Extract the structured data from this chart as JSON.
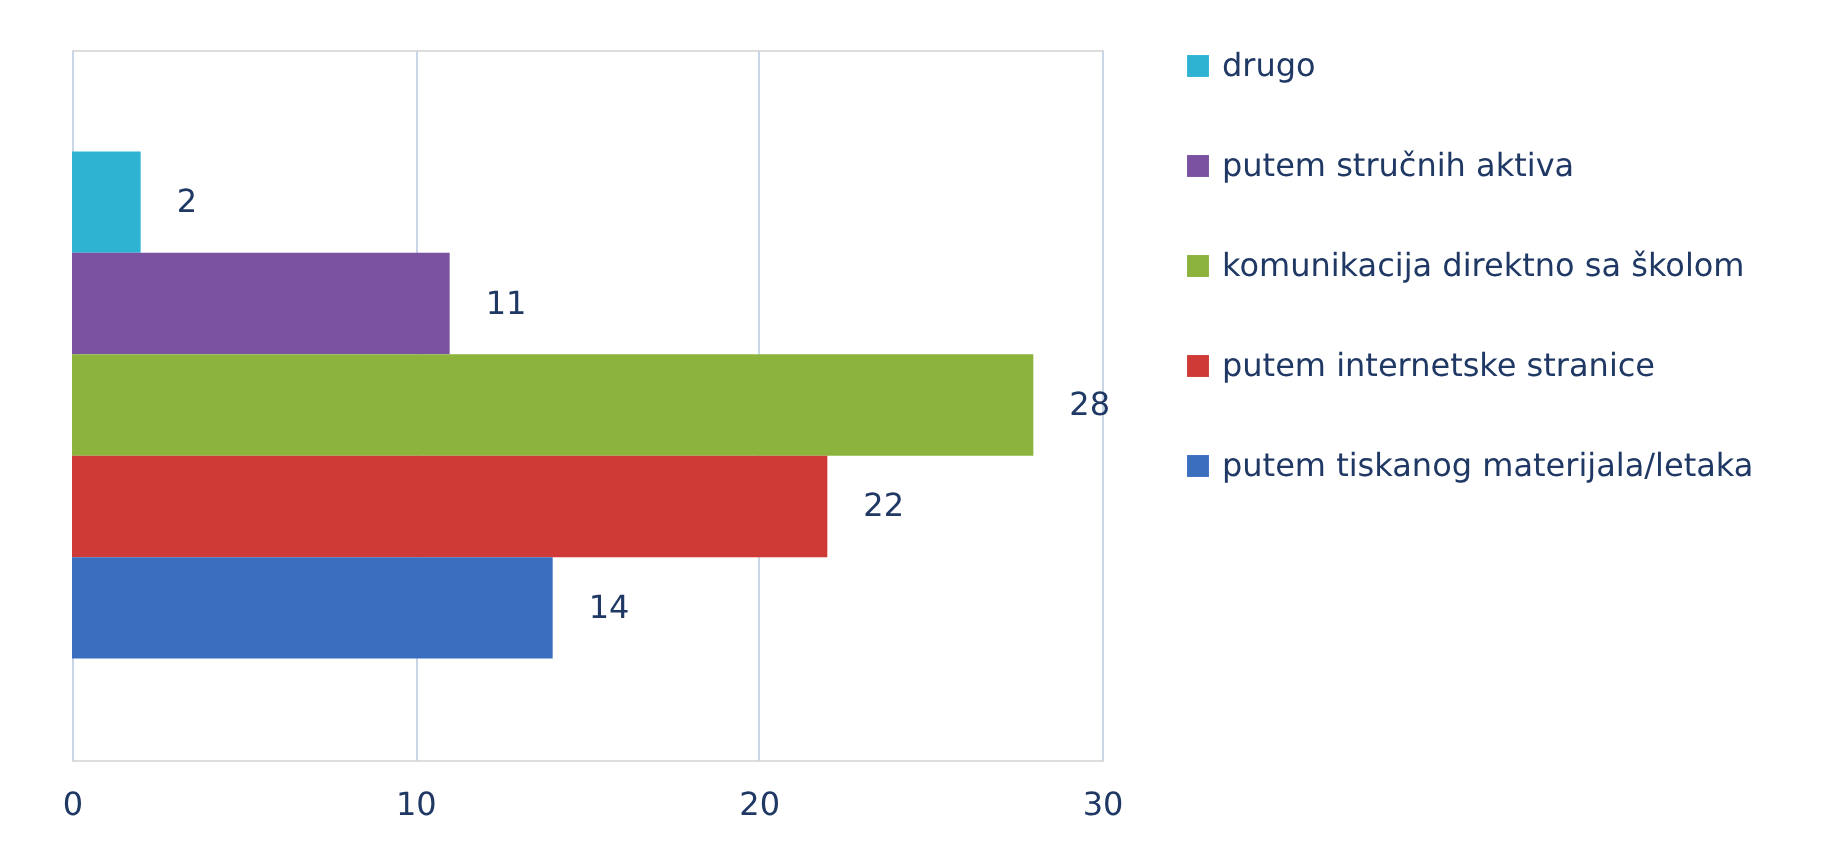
{
  "chart_data": {
    "type": "bar",
    "orientation": "horizontal",
    "categories": [
      null
    ],
    "series": [
      {
        "name": "drugo",
        "color": "#2fb3d3",
        "values": [
          2
        ]
      },
      {
        "name": "putem stručnih aktiva",
        "color": "#7b52a0",
        "values": [
          11
        ]
      },
      {
        "name": "komunikacija direktno sa školom",
        "color": "#8cb43c",
        "values": [
          28
        ]
      },
      {
        "name": "putem internetske stranice",
        "color": "#cf3a36",
        "values": [
          22
        ]
      },
      {
        "name": "putem tiskanog materijala/letaka",
        "color": "#3a6fc0",
        "values": [
          14
        ]
      }
    ],
    "xlim": [
      0,
      30
    ],
    "xticks": [
      0,
      10,
      20,
      30
    ],
    "grid": "x",
    "legend": "right",
    "data_labels": true
  }
}
